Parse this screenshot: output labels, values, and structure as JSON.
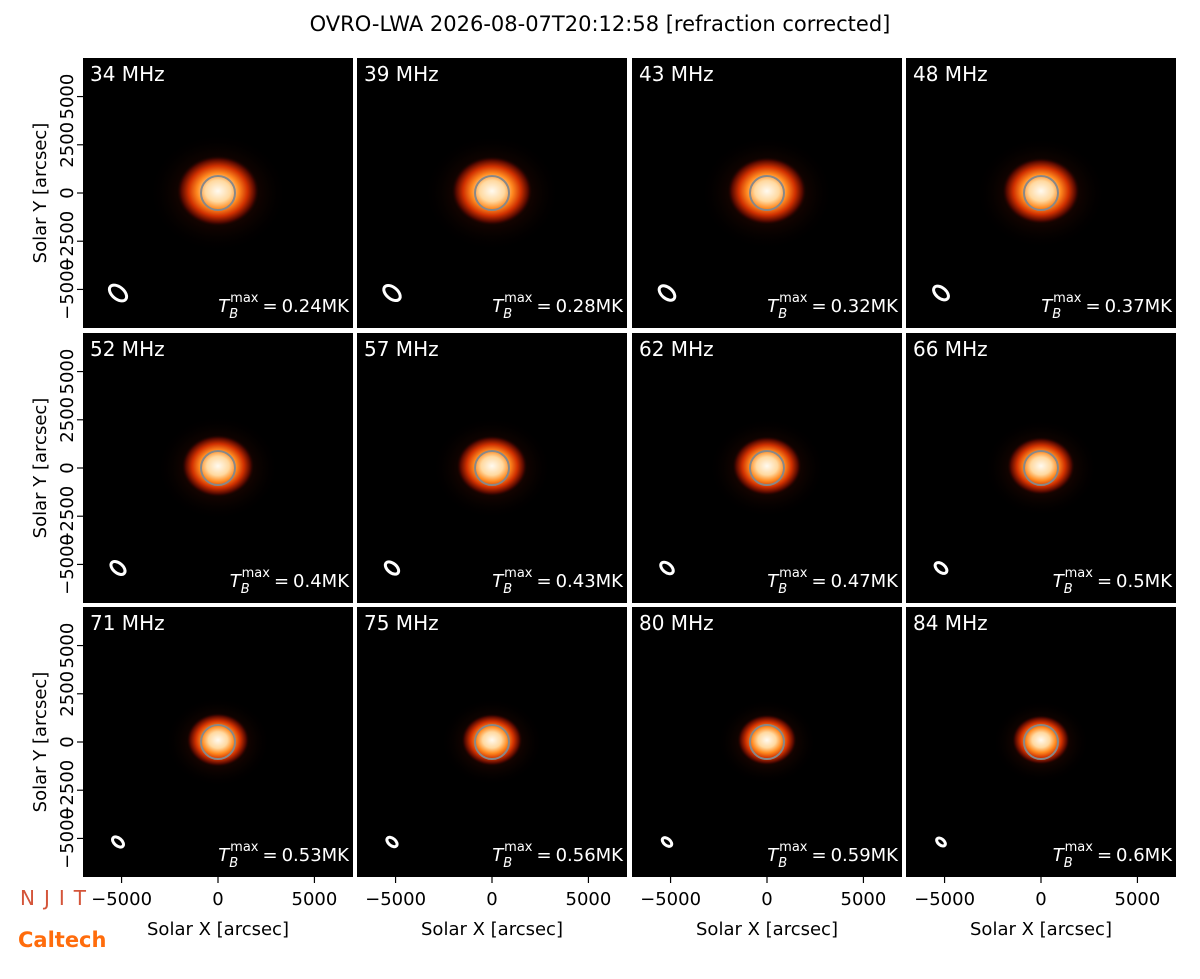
{
  "chart_data": {
    "type": "image-grid",
    "title": "OVRO-LWA 2026-08-07T20:12:58 [refraction corrected]",
    "x_label": "Solar X [arcsec]",
    "y_label": "Solar Y [arcsec]",
    "categories": [
      "34 MHz",
      "39 MHz",
      "43 MHz",
      "48 MHz",
      "52 MHz",
      "57 MHz",
      "62 MHz",
      "66 MHz",
      "71 MHz",
      "75 MHz",
      "80 MHz",
      "84 MHz"
    ],
    "values": [
      0.24,
      0.28,
      0.32,
      0.37,
      0.4,
      0.43,
      0.47,
      0.5,
      0.53,
      0.56,
      0.59,
      0.6
    ],
    "value_labels": [
      "0.24MK",
      "0.28MK",
      "0.32MK",
      "0.37MK",
      "0.4MK",
      "0.43MK",
      "0.47MK",
      "0.5MK",
      "0.53MK",
      "0.56MK",
      "0.59MK",
      "0.6MK"
    ],
    "tmax_symbol": "T",
    "tmax_sub": "B",
    "tmax_sup": "max",
    "tmax_eq": "=",
    "xlim": [
      -7000,
      7000
    ],
    "ylim": [
      -7000,
      7000
    ],
    "xticks": [
      {
        "value": -5000,
        "label": "−5000"
      },
      0,
      5000
    ],
    "yticks": [
      {
        "value": -5000,
        "label": "−5000"
      },
      {
        "value": -2500,
        "label": "−2500"
      },
      0,
      2500,
      5000
    ],
    "grid": false
  },
  "logos": {
    "njit": "NJIT",
    "caltech": "Caltech"
  }
}
